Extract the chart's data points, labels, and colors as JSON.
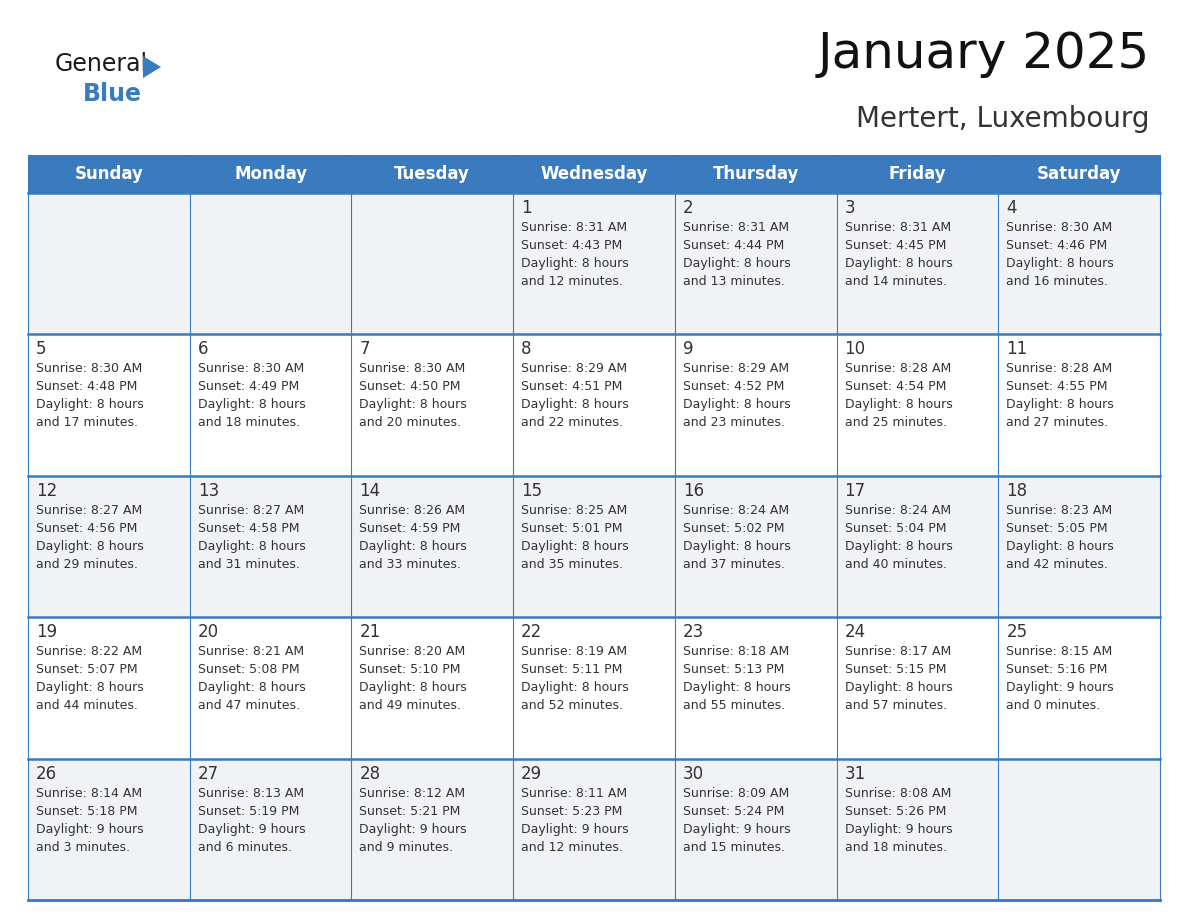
{
  "title": "January 2025",
  "subtitle": "Mertert, Luxembourg",
  "header_color": "#3a7bbf",
  "header_text_color": "#ffffff",
  "cell_bg_white": "#ffffff",
  "cell_bg_gray": "#f0f2f5",
  "border_color": "#3a7bbf",
  "day_number_color": "#333333",
  "text_color": "#333333",
  "days_of_week": [
    "Sunday",
    "Monday",
    "Tuesday",
    "Wednesday",
    "Thursday",
    "Friday",
    "Saturday"
  ],
  "weeks": [
    [
      {
        "day": "",
        "info": ""
      },
      {
        "day": "",
        "info": ""
      },
      {
        "day": "",
        "info": ""
      },
      {
        "day": "1",
        "info": "Sunrise: 8:31 AM\nSunset: 4:43 PM\nDaylight: 8 hours\nand 12 minutes."
      },
      {
        "day": "2",
        "info": "Sunrise: 8:31 AM\nSunset: 4:44 PM\nDaylight: 8 hours\nand 13 minutes."
      },
      {
        "day": "3",
        "info": "Sunrise: 8:31 AM\nSunset: 4:45 PM\nDaylight: 8 hours\nand 14 minutes."
      },
      {
        "day": "4",
        "info": "Sunrise: 8:30 AM\nSunset: 4:46 PM\nDaylight: 8 hours\nand 16 minutes."
      }
    ],
    [
      {
        "day": "5",
        "info": "Sunrise: 8:30 AM\nSunset: 4:48 PM\nDaylight: 8 hours\nand 17 minutes."
      },
      {
        "day": "6",
        "info": "Sunrise: 8:30 AM\nSunset: 4:49 PM\nDaylight: 8 hours\nand 18 minutes."
      },
      {
        "day": "7",
        "info": "Sunrise: 8:30 AM\nSunset: 4:50 PM\nDaylight: 8 hours\nand 20 minutes."
      },
      {
        "day": "8",
        "info": "Sunrise: 8:29 AM\nSunset: 4:51 PM\nDaylight: 8 hours\nand 22 minutes."
      },
      {
        "day": "9",
        "info": "Sunrise: 8:29 AM\nSunset: 4:52 PM\nDaylight: 8 hours\nand 23 minutes."
      },
      {
        "day": "10",
        "info": "Sunrise: 8:28 AM\nSunset: 4:54 PM\nDaylight: 8 hours\nand 25 minutes."
      },
      {
        "day": "11",
        "info": "Sunrise: 8:28 AM\nSunset: 4:55 PM\nDaylight: 8 hours\nand 27 minutes."
      }
    ],
    [
      {
        "day": "12",
        "info": "Sunrise: 8:27 AM\nSunset: 4:56 PM\nDaylight: 8 hours\nand 29 minutes."
      },
      {
        "day": "13",
        "info": "Sunrise: 8:27 AM\nSunset: 4:58 PM\nDaylight: 8 hours\nand 31 minutes."
      },
      {
        "day": "14",
        "info": "Sunrise: 8:26 AM\nSunset: 4:59 PM\nDaylight: 8 hours\nand 33 minutes."
      },
      {
        "day": "15",
        "info": "Sunrise: 8:25 AM\nSunset: 5:01 PM\nDaylight: 8 hours\nand 35 minutes."
      },
      {
        "day": "16",
        "info": "Sunrise: 8:24 AM\nSunset: 5:02 PM\nDaylight: 8 hours\nand 37 minutes."
      },
      {
        "day": "17",
        "info": "Sunrise: 8:24 AM\nSunset: 5:04 PM\nDaylight: 8 hours\nand 40 minutes."
      },
      {
        "day": "18",
        "info": "Sunrise: 8:23 AM\nSunset: 5:05 PM\nDaylight: 8 hours\nand 42 minutes."
      }
    ],
    [
      {
        "day": "19",
        "info": "Sunrise: 8:22 AM\nSunset: 5:07 PM\nDaylight: 8 hours\nand 44 minutes."
      },
      {
        "day": "20",
        "info": "Sunrise: 8:21 AM\nSunset: 5:08 PM\nDaylight: 8 hours\nand 47 minutes."
      },
      {
        "day": "21",
        "info": "Sunrise: 8:20 AM\nSunset: 5:10 PM\nDaylight: 8 hours\nand 49 minutes."
      },
      {
        "day": "22",
        "info": "Sunrise: 8:19 AM\nSunset: 5:11 PM\nDaylight: 8 hours\nand 52 minutes."
      },
      {
        "day": "23",
        "info": "Sunrise: 8:18 AM\nSunset: 5:13 PM\nDaylight: 8 hours\nand 55 minutes."
      },
      {
        "day": "24",
        "info": "Sunrise: 8:17 AM\nSunset: 5:15 PM\nDaylight: 8 hours\nand 57 minutes."
      },
      {
        "day": "25",
        "info": "Sunrise: 8:15 AM\nSunset: 5:16 PM\nDaylight: 9 hours\nand 0 minutes."
      }
    ],
    [
      {
        "day": "26",
        "info": "Sunrise: 8:14 AM\nSunset: 5:18 PM\nDaylight: 9 hours\nand 3 minutes."
      },
      {
        "day": "27",
        "info": "Sunrise: 8:13 AM\nSunset: 5:19 PM\nDaylight: 9 hours\nand 6 minutes."
      },
      {
        "day": "28",
        "info": "Sunrise: 8:12 AM\nSunset: 5:21 PM\nDaylight: 9 hours\nand 9 minutes."
      },
      {
        "day": "29",
        "info": "Sunrise: 8:11 AM\nSunset: 5:23 PM\nDaylight: 9 hours\nand 12 minutes."
      },
      {
        "day": "30",
        "info": "Sunrise: 8:09 AM\nSunset: 5:24 PM\nDaylight: 9 hours\nand 15 minutes."
      },
      {
        "day": "31",
        "info": "Sunrise: 8:08 AM\nSunset: 5:26 PM\nDaylight: 9 hours\nand 18 minutes."
      },
      {
        "day": "",
        "info": ""
      }
    ]
  ],
  "logo_text_general": "General",
  "logo_text_blue": "Blue",
  "logo_color_general": "#1a1a1a",
  "logo_color_blue": "#3a7bbf",
  "logo_triangle_color": "#3a7bbf",
  "title_fontsize": 36,
  "subtitle_fontsize": 20,
  "header_fontsize": 12,
  "day_num_fontsize": 12,
  "info_fontsize": 9
}
